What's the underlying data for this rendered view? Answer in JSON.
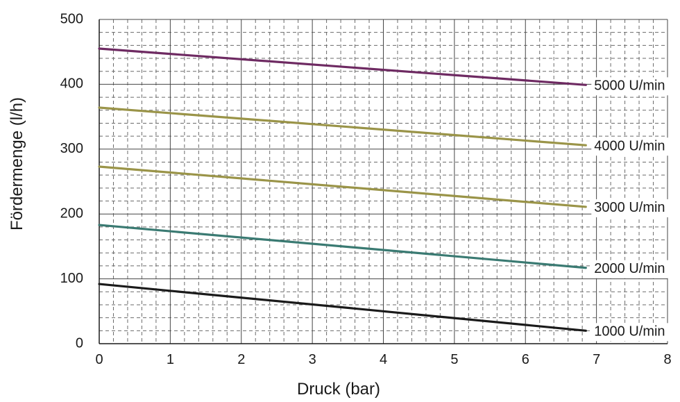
{
  "chart_data": {
    "type": "line",
    "xlabel": "Druck (bar)",
    "ylabel": "Fördermenge (l/h)",
    "xlim": [
      0,
      8
    ],
    "ylim": [
      0,
      500
    ],
    "xticks": [
      "0",
      "1",
      "2",
      "3",
      "4",
      "5",
      "6",
      "7",
      "8"
    ],
    "yticks": [
      "0",
      "100",
      "200",
      "300",
      "400",
      "500"
    ],
    "grid": true,
    "legend": "inline at line ends (right)",
    "series": [
      {
        "name": "5000 U/min",
        "color": "#6e2a62",
        "x": [
          0,
          6.85
        ],
        "y": [
          455,
          399
        ]
      },
      {
        "name": "4000 U/min",
        "color": "#9a9448",
        "x": [
          0,
          6.85
        ],
        "y": [
          364,
          306
        ]
      },
      {
        "name": "3000 U/min",
        "color": "#9a9448",
        "x": [
          0,
          6.85
        ],
        "y": [
          273,
          211
        ]
      },
      {
        "name": "2000 U/min",
        "color": "#3a7a72",
        "x": [
          0,
          6.85
        ],
        "y": [
          183,
          117
        ]
      },
      {
        "name": "1000 U/min",
        "color": "#1a1a1a",
        "x": [
          0,
          6.85
        ],
        "y": [
          92,
          20
        ]
      }
    ]
  }
}
